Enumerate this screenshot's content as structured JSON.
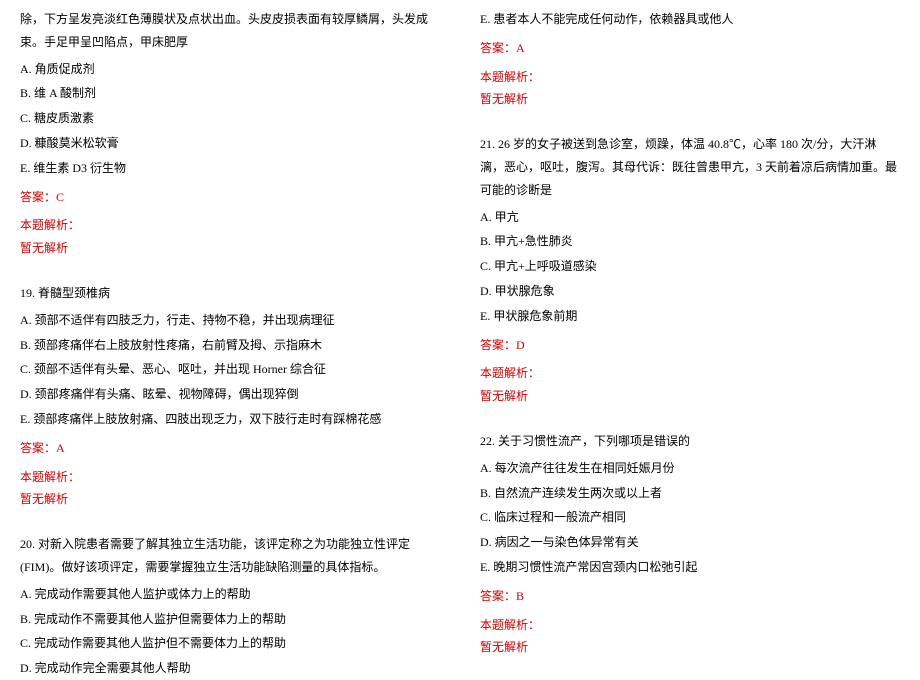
{
  "col_left": {
    "q18": {
      "stem": "除，下方呈发亮淡红色薄膜状及点状出血。头皮皮损表面有较厚鳞屑，头发成束。手足甲呈凹陷点，甲床肥厚",
      "a": "A. 角质促成剂",
      "b": "B. 维 A 酸制剂",
      "c": "C. 糖皮质激素",
      "d": "D. 糠酸莫米松软膏",
      "e": "E. 维生素 D3 衍生物",
      "answer": "答案：C",
      "analysis_label": "本题解析：",
      "analysis_content": "暂无解析"
    },
    "q19": {
      "stem": "19. 脊髓型颈椎病",
      "a": "A. 颈部不适伴有四肢乏力，行走、持物不稳，并出现病理征",
      "b": "B. 颈部疼痛伴右上肢放射性疼痛，右前臂及拇、示指麻木",
      "c": "C. 颈部不适伴有头晕、恶心、呕吐，并出现 Horner 综合征",
      "d": "D. 颈部疼痛伴有头痛、眩晕、视物障碍，偶出现猝倒",
      "e": "E. 颈部疼痛伴上肢放射痛、四肢出现乏力，双下肢行走时有踩棉花感",
      "answer": "答案：A",
      "analysis_label": "本题解析：",
      "analysis_content": "暂无解析"
    },
    "q20": {
      "stem": "20. 对新入院患者需要了解其独立生活功能，该评定称之为功能独立性评定(FIM)。做好该项评定，需要掌握独立生活功能缺陷测量的具体指标。",
      "a": "A. 完成动作需要其他人监护或体力上的帮助",
      "b": "B. 完成动作不需要其他人监护但需要体力上的帮助",
      "c": "C. 完成动作需要其他人监护但不需要体力上的帮助",
      "d": "D. 完成动作完全需要其他人帮助"
    }
  },
  "col_right": {
    "q20cont": {
      "e": "E. 患者本人不能完成任何动作，依赖器具或他人",
      "answer": "答案：A",
      "analysis_label": "本题解析：",
      "analysis_content": "暂无解析"
    },
    "q21": {
      "stem": "21. 26 岁的女子被送到急诊室，烦躁，体温 40.8℃，心率 180 次/分，大汗淋漓，恶心，呕吐，腹泻。其母代诉：既往曾患甲亢，3 天前着凉后病情加重。最可能的诊断是",
      "a": "A. 甲亢",
      "b": "B. 甲亢+急性肺炎",
      "c": "C. 甲亢+上呼吸道感染",
      "d": "D. 甲状腺危象",
      "e": "E. 甲状腺危象前期",
      "answer": "答案：D",
      "analysis_label": "本题解析：",
      "analysis_content": "暂无解析"
    },
    "q22": {
      "stem": "22. 关于习惯性流产，下列哪项是错误的",
      "a": "A. 每次流产往往发生在相同妊娠月份",
      "b": "B. 自然流产连续发生两次或以上者",
      "c": "C. 临床过程和一般流产相同",
      "d": "D. 病因之一与染色体异常有关",
      "e": "E. 晚期习惯性流产常因宫颈内口松弛引起",
      "answer": "答案：B",
      "analysis_label": "本题解析：",
      "analysis_content": "暂无解析"
    }
  }
}
